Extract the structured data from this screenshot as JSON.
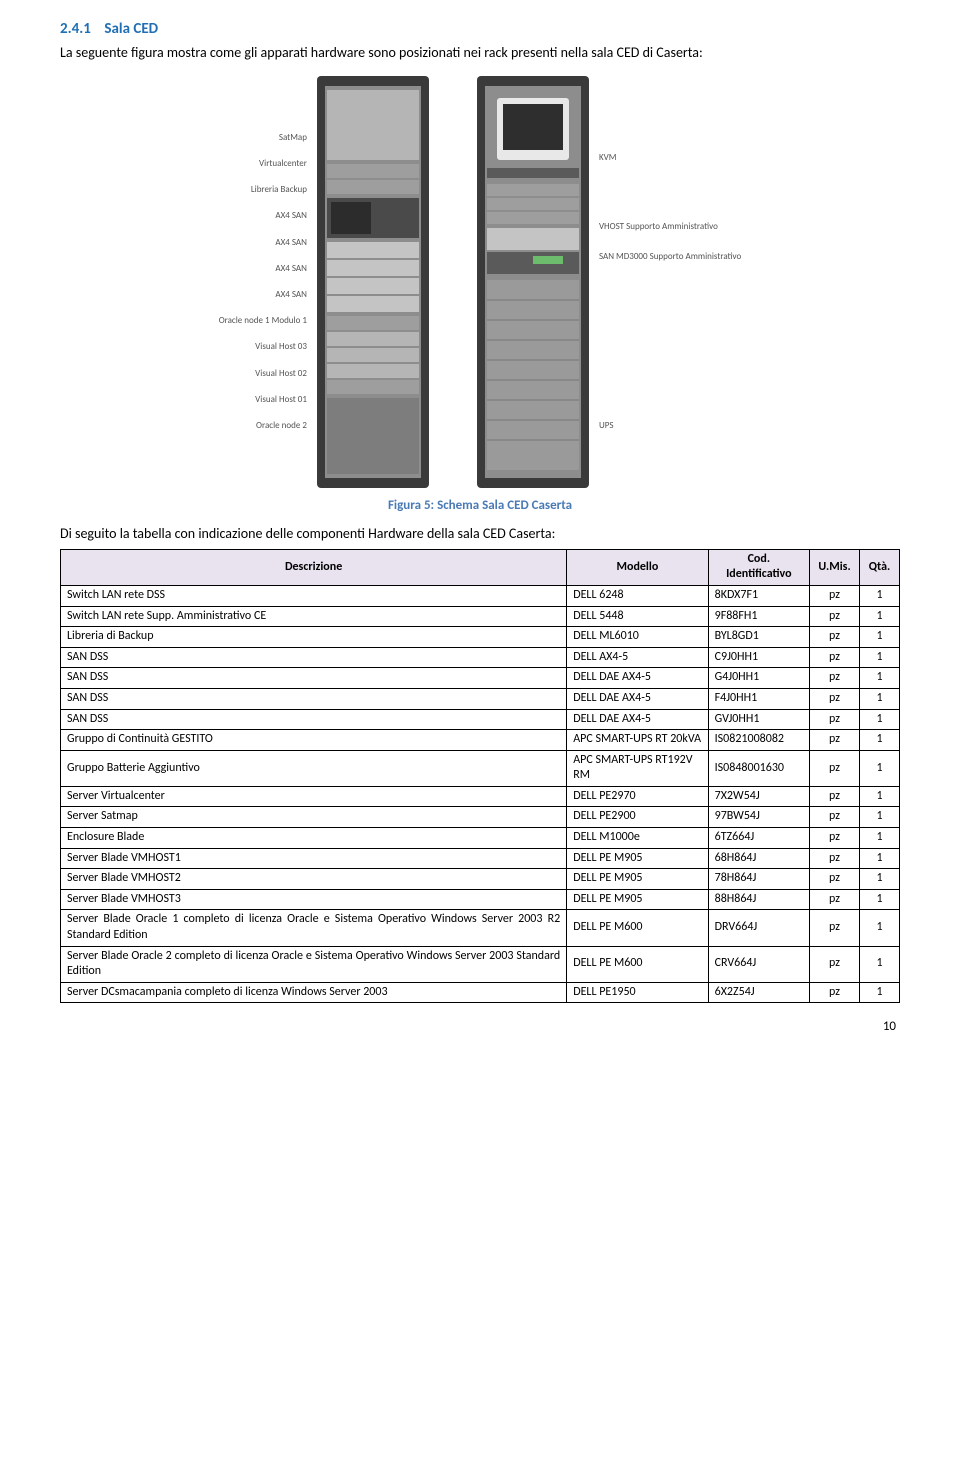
{
  "section": {
    "number": "2.4.1",
    "title": "Sala CED",
    "heading_color": "#1f6fb5"
  },
  "intro_text": "La seguente figura mostra come gli apparati hardware sono posizionati nei rack presenti nella sala CED di Caserta:",
  "figure": {
    "caption": "Figura 5: Schema Sala CED Caserta",
    "caption_color": "#4a7ab5",
    "rack1_labels": [
      "SatMap",
      "Virtualcenter",
      "Libreria Backup",
      "AX4 SAN",
      "AX4 SAN",
      "AX4 SAN",
      "AX4 SAN",
      "Oracle node 1 Modulo 1",
      "Visual Host 03",
      "Visual Host 02",
      "Visual Host 01",
      "Oracle node 2"
    ],
    "rack2_labels": [
      "KVM",
      "VHOST Supporto Amministrativo",
      "SAN MD3000 Supporto Amministrativo",
      "UPS"
    ],
    "rack_frame_color": "#3a3a3a",
    "rack_body_color": "#8d8d8d",
    "rack_slot_color": "#b5b5b5",
    "rack_dark_slot_color": "#5a5a5a",
    "monitor_color": "#e8e8e8"
  },
  "lead_text": "Di seguito la tabella con indicazione delle componenti Hardware della sala CED Caserta:",
  "table": {
    "header_bg": "#e9e2ef",
    "columns": [
      "Descrizione",
      "Modello",
      "Cod. Identificativo",
      "U.Mis.",
      "Qtà."
    ],
    "rows": [
      [
        "Switch LAN rete DSS",
        "DELL 6248",
        "8KDX7F1",
        "pz",
        "1"
      ],
      [
        "Switch LAN rete Supp. Amministrativo CE",
        "DELL 5448",
        "9F88FH1",
        "pz",
        "1"
      ],
      [
        "Libreria di Backup",
        "DELL ML6010",
        "BYL8GD1",
        "pz",
        "1"
      ],
      [
        "SAN DSS",
        "DELL AX4-5",
        "C9J0HH1",
        "pz",
        "1"
      ],
      [
        "SAN DSS",
        "DELL DAE AX4-5",
        "G4J0HH1",
        "pz",
        "1"
      ],
      [
        "SAN DSS",
        "DELL DAE AX4-5",
        "F4J0HH1",
        "pz",
        "1"
      ],
      [
        "SAN DSS",
        "DELL DAE AX4-5",
        "GVJ0HH1",
        "pz",
        "1"
      ],
      [
        "Gruppo di Continuità GESTITO",
        "APC SMART-UPS RT 20kVA",
        "IS0821008082",
        "pz",
        "1"
      ],
      [
        "Gruppo Batterie Aggiuntivo",
        "APC SMART-UPS RT192V RM",
        "IS0848001630",
        "pz",
        "1"
      ],
      [
        "Server Virtualcenter",
        "DELL PE2970",
        "7X2W54J",
        "pz",
        "1"
      ],
      [
        "Server Satmap",
        "DELL PE2900",
        "97BW54J",
        "pz",
        "1"
      ],
      [
        "Enclosure Blade",
        "DELL M1000e",
        "6TZ664J",
        "pz",
        "1"
      ],
      [
        "Server Blade VMHOST1",
        "DELL PE M905",
        "68H864J",
        "pz",
        "1"
      ],
      [
        "Server Blade VMHOST2",
        "DELL PE M905",
        "78H864J",
        "pz",
        "1"
      ],
      [
        "Server Blade VMHOST3",
        "DELL PE M905",
        "88H864J",
        "pz",
        "1"
      ],
      [
        "Server Blade Oracle 1 completo di licenza Oracle e Sistema Operativo Windows Server 2003 R2 Standard Edition",
        "DELL PE M600",
        "DRV664J",
        "pz",
        "1"
      ],
      [
        "Server Blade Oracle 2 completo di licenza Oracle e Sistema Operativo Windows Server 2003 Standard Edition",
        "DELL PE M600",
        "CRV664J",
        "pz",
        "1"
      ],
      [
        "Server DCsmacampania completo di licenza Windows Server 2003",
        "DELL PE1950",
        "6X2Z54J",
        "pz",
        "1"
      ]
    ]
  },
  "page_number": "10"
}
